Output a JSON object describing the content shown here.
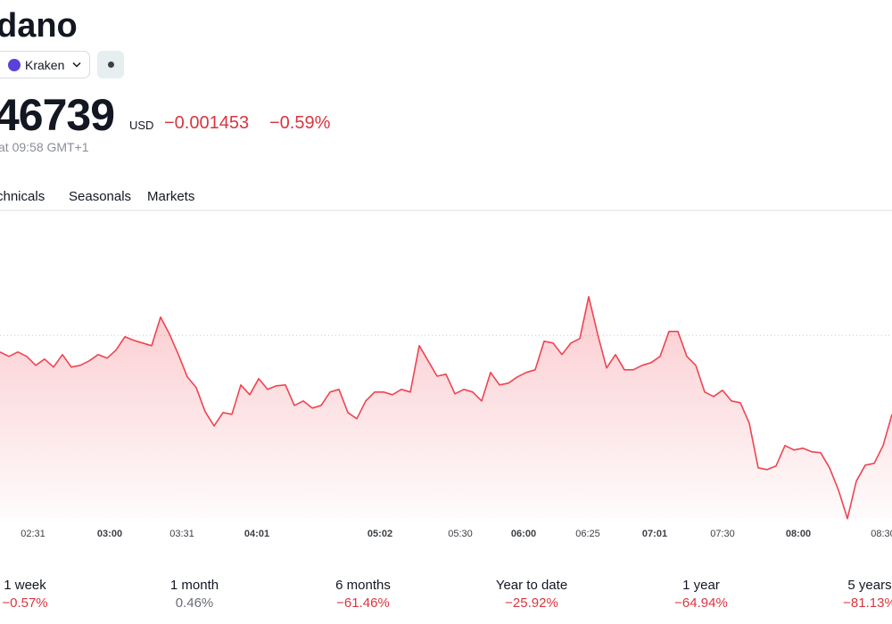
{
  "header": {
    "title": "dano",
    "exchange": "Kraken",
    "price": "46739",
    "currency": "USD",
    "change": "−0.001453",
    "change_pct": "−0.59%",
    "time": "at 09:58 GMT+1"
  },
  "tabs": [
    "chnicals",
    "Seasonals",
    "Markets"
  ],
  "chart_data": {
    "type": "area",
    "color": "#ef4452",
    "values": [
      0.247879,
      0.247794,
      0.247879,
      0.247794,
      0.247625,
      0.247744,
      0.247592,
      0.247828,
      0.247592,
      0.247625,
      0.24771,
      0.247828,
      0.247761,
      0.247913,
      0.248166,
      0.248099,
      0.248048,
      0.247997,
      0.248538,
      0.248217,
      0.247828,
      0.247406,
      0.247203,
      0.246747,
      0.246476,
      0.24673,
      0.246696,
      0.247254,
      0.247068,
      0.247372,
      0.247169,
      0.247237,
      0.247254,
      0.246865,
      0.246949,
      0.246814,
      0.246865,
      0.247118,
      0.247169,
      0.24673,
      0.246611,
      0.246949,
      0.247118,
      0.247118,
      0.247068,
      0.247169,
      0.247118,
      0.247997,
      0.24771,
      0.24742,
      0.247456,
      0.247085,
      0.247169,
      0.247118,
      0.246949,
      0.24749,
      0.247254,
      0.247287,
      0.247406,
      0.24749,
      0.247541,
      0.248082,
      0.248048,
      0.247828,
      0.248048,
      0.248132,
      0.248927,
      0.248217,
      0.247575,
      0.247828,
      0.247541,
      0.247541,
      0.247625,
      0.247676,
      0.247794,
      0.248268,
      0.248268,
      0.247794,
      0.247625,
      0.247118,
      0.247034,
      0.247152,
      0.246949,
      0.246916,
      0.246527,
      0.245682,
      0.245648,
      0.245716,
      0.246104,
      0.24602,
      0.246054,
      0.245986,
      0.245969,
      0.245682,
      0.245259,
      0.244719,
      0.245428,
      0.245733,
      0.245766,
      0.246104,
      0.246696
    ],
    "xlim": [
      0,
      100
    ],
    "ylim": [
      0.24458,
      0.25058
    ],
    "reference_line": 0.248192,
    "xticks": [
      {
        "value": 3.7,
        "label": "02:31"
      },
      {
        "value": 12.3,
        "label": "03:00",
        "bold": true
      },
      {
        "value": 20.4,
        "label": "03:31"
      },
      {
        "value": 28.8,
        "label": "04:01",
        "bold": true
      },
      {
        "value": 42.6,
        "label": "05:02",
        "bold": true
      },
      {
        "value": 51.6,
        "label": "05:30"
      },
      {
        "value": 58.7,
        "label": "06:00",
        "bold": true
      },
      {
        "value": 65.9,
        "label": "06:25"
      },
      {
        "value": 73.4,
        "label": "07:01",
        "bold": true
      },
      {
        "value": 81,
        "label": "07:30"
      },
      {
        "value": 89.5,
        "label": "08:00",
        "bold": true
      },
      {
        "value": 99,
        "label": "08:30"
      }
    ]
  },
  "performance": [
    {
      "period": "1 week",
      "change": "−0.57%"
    },
    {
      "period": "1 month",
      "change": "0.46%"
    },
    {
      "period": "6 months",
      "change": "−61.46%"
    },
    {
      "period": "Year to date",
      "change": "−25.92%"
    },
    {
      "period": "1 year",
      "change": "−64.94%"
    },
    {
      "period": "5 years",
      "change": "−81.13%"
    }
  ]
}
